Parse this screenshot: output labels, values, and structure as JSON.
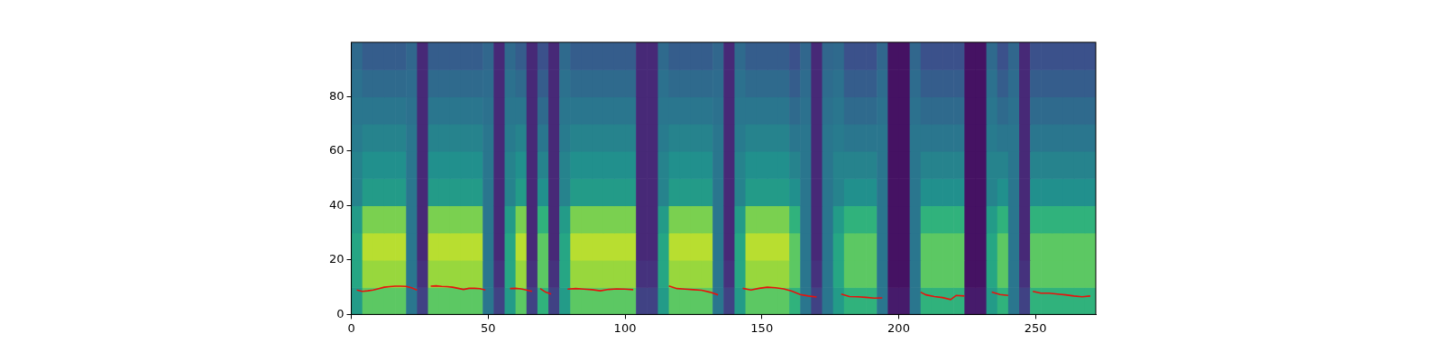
{
  "chart_data": {
    "type": "heatmap",
    "xlim": [
      0,
      272
    ],
    "ylim": [
      0,
      100
    ],
    "xticks": [
      0,
      50,
      100,
      150,
      200,
      250
    ],
    "yticks": [
      0,
      20,
      40,
      60,
      80
    ],
    "grid": false,
    "heatmap": {
      "x_edges": [
        0,
        4,
        8,
        12,
        16,
        20,
        24,
        28,
        32,
        36,
        40,
        44,
        48,
        52,
        56,
        60,
        64,
        68,
        72,
        76,
        80,
        84,
        88,
        92,
        96,
        100,
        104,
        108,
        112,
        116,
        120,
        124,
        128,
        132,
        136,
        140,
        144,
        148,
        152,
        156,
        160,
        164,
        168,
        172,
        176,
        180,
        184,
        188,
        192,
        196,
        200,
        204,
        208,
        212,
        216,
        220,
        224,
        228,
        232,
        236,
        240,
        244,
        248,
        252,
        256,
        260,
        264,
        268,
        272
      ],
      "y_edges": [
        0,
        10,
        20,
        30,
        40,
        50,
        60,
        70,
        80,
        90,
        100
      ],
      "color_range": [
        0,
        1
      ],
      "cells": [
        [
          0.55,
          0.75,
          0.75,
          0.75,
          0.75,
          0.4,
          0.2,
          0.75,
          0.75,
          0.75,
          0.75,
          0.75,
          0.4,
          0.2,
          0.55,
          0.75,
          0.2,
          0.65,
          0.2,
          0.55,
          0.75,
          0.75,
          0.75,
          0.75,
          0.75,
          0.75,
          0.2,
          0.2,
          0.55,
          0.75,
          0.75,
          0.75,
          0.75,
          0.4,
          0.2,
          0.55,
          0.75,
          0.75,
          0.75,
          0.75,
          0.65,
          0.4,
          0.2,
          0.4,
          0.55,
          0.65,
          0.65,
          0.65,
          0.4,
          0.08,
          0.08,
          0.4,
          0.65,
          0.65,
          0.65,
          0.65,
          0.08,
          0.08,
          0.55,
          0.65,
          0.4,
          0.2,
          0.65,
          0.65,
          0.65,
          0.65,
          0.65,
          0.65
        ],
        [
          0.6,
          0.85,
          0.85,
          0.85,
          0.85,
          0.4,
          0.15,
          0.85,
          0.85,
          0.85,
          0.85,
          0.85,
          0.4,
          0.15,
          0.6,
          0.85,
          0.15,
          0.75,
          0.15,
          0.6,
          0.85,
          0.85,
          0.85,
          0.85,
          0.85,
          0.85,
          0.15,
          0.15,
          0.6,
          0.85,
          0.85,
          0.85,
          0.85,
          0.4,
          0.15,
          0.6,
          0.85,
          0.85,
          0.85,
          0.85,
          0.75,
          0.4,
          0.15,
          0.4,
          0.6,
          0.75,
          0.75,
          0.75,
          0.4,
          0.05,
          0.05,
          0.4,
          0.75,
          0.75,
          0.75,
          0.75,
          0.05,
          0.05,
          0.6,
          0.75,
          0.4,
          0.15,
          0.75,
          0.75,
          0.75,
          0.75,
          0.75,
          0.75
        ],
        [
          0.6,
          0.9,
          0.9,
          0.9,
          0.9,
          0.4,
          0.12,
          0.9,
          0.9,
          0.9,
          0.9,
          0.9,
          0.4,
          0.12,
          0.6,
          0.9,
          0.12,
          0.75,
          0.12,
          0.6,
          0.9,
          0.9,
          0.9,
          0.9,
          0.9,
          0.9,
          0.12,
          0.12,
          0.6,
          0.9,
          0.9,
          0.9,
          0.9,
          0.4,
          0.12,
          0.6,
          0.9,
          0.9,
          0.9,
          0.9,
          0.75,
          0.4,
          0.12,
          0.4,
          0.6,
          0.75,
          0.75,
          0.75,
          0.4,
          0.05,
          0.05,
          0.4,
          0.75,
          0.75,
          0.75,
          0.75,
          0.05,
          0.05,
          0.6,
          0.75,
          0.4,
          0.12,
          0.75,
          0.75,
          0.75,
          0.75,
          0.75,
          0.75
        ],
        [
          0.55,
          0.8,
          0.8,
          0.8,
          0.8,
          0.4,
          0.12,
          0.8,
          0.8,
          0.8,
          0.8,
          0.8,
          0.4,
          0.12,
          0.55,
          0.8,
          0.12,
          0.65,
          0.12,
          0.55,
          0.8,
          0.8,
          0.8,
          0.8,
          0.8,
          0.8,
          0.12,
          0.12,
          0.55,
          0.8,
          0.8,
          0.8,
          0.8,
          0.4,
          0.12,
          0.55,
          0.8,
          0.8,
          0.8,
          0.8,
          0.65,
          0.4,
          0.12,
          0.4,
          0.55,
          0.65,
          0.65,
          0.65,
          0.4,
          0.05,
          0.05,
          0.4,
          0.65,
          0.65,
          0.65,
          0.65,
          0.05,
          0.05,
          0.55,
          0.65,
          0.4,
          0.12,
          0.65,
          0.65,
          0.65,
          0.65,
          0.65,
          0.65
        ],
        [
          0.45,
          0.55,
          0.55,
          0.55,
          0.55,
          0.4,
          0.12,
          0.55,
          0.55,
          0.55,
          0.55,
          0.55,
          0.4,
          0.12,
          0.45,
          0.55,
          0.12,
          0.5,
          0.12,
          0.45,
          0.55,
          0.55,
          0.55,
          0.55,
          0.55,
          0.55,
          0.12,
          0.12,
          0.45,
          0.55,
          0.55,
          0.55,
          0.55,
          0.4,
          0.12,
          0.45,
          0.55,
          0.55,
          0.55,
          0.55,
          0.5,
          0.4,
          0.12,
          0.4,
          0.45,
          0.5,
          0.5,
          0.5,
          0.4,
          0.05,
          0.05,
          0.4,
          0.5,
          0.5,
          0.5,
          0.5,
          0.05,
          0.05,
          0.45,
          0.5,
          0.4,
          0.12,
          0.5,
          0.5,
          0.5,
          0.5,
          0.5,
          0.5
        ],
        [
          0.45,
          0.5,
          0.5,
          0.5,
          0.5,
          0.4,
          0.12,
          0.5,
          0.5,
          0.5,
          0.5,
          0.5,
          0.4,
          0.12,
          0.45,
          0.5,
          0.12,
          0.45,
          0.12,
          0.45,
          0.5,
          0.5,
          0.5,
          0.5,
          0.5,
          0.5,
          0.12,
          0.12,
          0.45,
          0.5,
          0.5,
          0.5,
          0.5,
          0.4,
          0.12,
          0.45,
          0.5,
          0.5,
          0.5,
          0.5,
          0.45,
          0.4,
          0.12,
          0.4,
          0.45,
          0.45,
          0.45,
          0.45,
          0.4,
          0.05,
          0.05,
          0.4,
          0.45,
          0.45,
          0.45,
          0.45,
          0.05,
          0.05,
          0.45,
          0.45,
          0.4,
          0.12,
          0.45,
          0.45,
          0.45,
          0.45,
          0.45,
          0.45
        ],
        [
          0.42,
          0.45,
          0.45,
          0.45,
          0.45,
          0.4,
          0.12,
          0.45,
          0.45,
          0.45,
          0.45,
          0.45,
          0.4,
          0.12,
          0.42,
          0.45,
          0.12,
          0.4,
          0.12,
          0.42,
          0.45,
          0.45,
          0.45,
          0.45,
          0.45,
          0.45,
          0.12,
          0.12,
          0.42,
          0.45,
          0.45,
          0.45,
          0.45,
          0.4,
          0.12,
          0.42,
          0.45,
          0.45,
          0.45,
          0.45,
          0.4,
          0.4,
          0.12,
          0.4,
          0.42,
          0.4,
          0.4,
          0.4,
          0.4,
          0.05,
          0.05,
          0.4,
          0.4,
          0.4,
          0.4,
          0.4,
          0.05,
          0.05,
          0.42,
          0.4,
          0.4,
          0.12,
          0.4,
          0.4,
          0.4,
          0.4,
          0.4,
          0.4
        ],
        [
          0.4,
          0.4,
          0.4,
          0.4,
          0.4,
          0.38,
          0.12,
          0.4,
          0.4,
          0.4,
          0.4,
          0.4,
          0.38,
          0.12,
          0.4,
          0.4,
          0.12,
          0.35,
          0.12,
          0.4,
          0.4,
          0.4,
          0.4,
          0.4,
          0.4,
          0.4,
          0.12,
          0.12,
          0.4,
          0.4,
          0.4,
          0.4,
          0.4,
          0.38,
          0.12,
          0.4,
          0.4,
          0.4,
          0.4,
          0.4,
          0.35,
          0.38,
          0.12,
          0.38,
          0.4,
          0.35,
          0.35,
          0.35,
          0.38,
          0.05,
          0.05,
          0.38,
          0.35,
          0.35,
          0.35,
          0.35,
          0.05,
          0.05,
          0.4,
          0.35,
          0.38,
          0.12,
          0.35,
          0.35,
          0.35,
          0.35,
          0.35,
          0.35
        ],
        [
          0.38,
          0.35,
          0.35,
          0.35,
          0.35,
          0.36,
          0.12,
          0.35,
          0.35,
          0.35,
          0.35,
          0.35,
          0.36,
          0.12,
          0.38,
          0.35,
          0.12,
          0.3,
          0.12,
          0.38,
          0.35,
          0.35,
          0.35,
          0.35,
          0.35,
          0.35,
          0.12,
          0.12,
          0.38,
          0.35,
          0.35,
          0.35,
          0.35,
          0.36,
          0.12,
          0.38,
          0.35,
          0.35,
          0.35,
          0.35,
          0.3,
          0.36,
          0.12,
          0.36,
          0.38,
          0.3,
          0.3,
          0.3,
          0.36,
          0.05,
          0.05,
          0.36,
          0.3,
          0.3,
          0.3,
          0.3,
          0.05,
          0.05,
          0.38,
          0.3,
          0.36,
          0.12,
          0.3,
          0.3,
          0.3,
          0.3,
          0.3,
          0.3
        ],
        [
          0.35,
          0.3,
          0.3,
          0.3,
          0.3,
          0.34,
          0.12,
          0.3,
          0.3,
          0.3,
          0.3,
          0.3,
          0.34,
          0.12,
          0.35,
          0.3,
          0.12,
          0.25,
          0.12,
          0.35,
          0.3,
          0.3,
          0.3,
          0.3,
          0.3,
          0.3,
          0.12,
          0.12,
          0.35,
          0.3,
          0.3,
          0.3,
          0.3,
          0.34,
          0.12,
          0.35,
          0.3,
          0.3,
          0.3,
          0.3,
          0.25,
          0.34,
          0.12,
          0.34,
          0.35,
          0.25,
          0.25,
          0.25,
          0.34,
          0.05,
          0.05,
          0.34,
          0.25,
          0.25,
          0.25,
          0.25,
          0.05,
          0.05,
          0.35,
          0.25,
          0.34,
          0.12,
          0.25,
          0.25,
          0.25,
          0.25,
          0.25,
          0.25
        ]
      ]
    },
    "series": [
      {
        "type": "line",
        "color": "#e8120c",
        "x": [
          2,
          4,
          6,
          8,
          10,
          12,
          14,
          16,
          18,
          20,
          22,
          24,
          26,
          29,
          31,
          33,
          35,
          37,
          39,
          41,
          43,
          45,
          47,
          49,
          53,
          58,
          60,
          62,
          64,
          66,
          67,
          69,
          71,
          73,
          76,
          79,
          82,
          85,
          88,
          91,
          94,
          97,
          100,
          103,
          110,
          116,
          119,
          122,
          125,
          128,
          131,
          134,
          138,
          143,
          146,
          149,
          152,
          155,
          158,
          161,
          164,
          167,
          170,
          175,
          179,
          182,
          185,
          188,
          191,
          194,
          200,
          208,
          210,
          213,
          216,
          219,
          221,
          224,
          229,
          234,
          237,
          240,
          245,
          249,
          252,
          255,
          258,
          261,
          264,
          267,
          270
        ],
        "values": [
          9,
          8.5,
          8.7,
          9,
          9.5,
          10,
          10.2,
          10.4,
          10.4,
          10.3,
          9.8,
          9,
          null,
          10.4,
          10.5,
          10.3,
          10.2,
          10,
          9.6,
          9.2,
          9.6,
          9.6,
          9.5,
          9,
          null,
          9.5,
          9.6,
          9.4,
          9,
          8.5,
          null,
          9.5,
          8.2,
          7.5,
          null,
          9.3,
          9.5,
          9.3,
          9.1,
          8.7,
          9.2,
          9.4,
          9.3,
          9.1,
          null,
          10.5,
          9.5,
          9.3,
          9.1,
          8.9,
          8.2,
          7.2,
          null,
          9.6,
          9,
          9.6,
          10,
          9.8,
          9.4,
          8.6,
          7.3,
          6.8,
          6.4,
          null,
          7.5,
          6.6,
          6.5,
          6.3,
          6,
          6.1,
          null,
          8.2,
          7.2,
          6.6,
          6.2,
          5.5,
          7,
          6.8,
          null,
          8.2,
          7.3,
          7,
          null,
          8.5,
          7.8,
          7.8,
          7.5,
          7.2,
          6.8,
          6.5,
          6.8
        ]
      }
    ]
  }
}
